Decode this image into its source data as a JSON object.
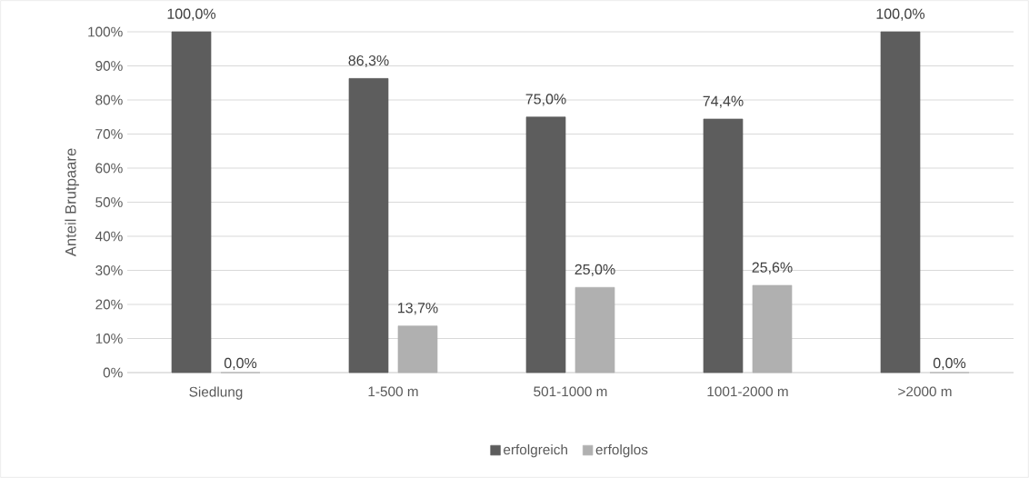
{
  "chart_data": {
    "type": "bar",
    "ylabel": "Anteil Brutpaare",
    "categories": [
      "Siedlung",
      "1-500 m",
      "501-1000 m",
      "1001-2000 m",
      ">2000 m"
    ],
    "series": [
      {
        "name": "erfolgreich",
        "color": "#5d5d5d",
        "values": [
          100.0,
          86.3,
          75.0,
          74.4,
          100.0
        ],
        "value_labels": [
          "100,0%",
          "86,3%",
          "75,0%",
          "74,4%",
          "100,0%"
        ]
      },
      {
        "name": "erfolglos",
        "color": "#b0b0b0",
        "values": [
          0.0,
          13.7,
          25.0,
          25.6,
          0.0
        ],
        "value_labels": [
          "0,0%",
          "13,7%",
          "25,0%",
          "25,6%",
          "0,0%"
        ]
      }
    ],
    "ylim": [
      0,
      100
    ],
    "yticks": [
      {
        "value": 0,
        "label": "0%"
      },
      {
        "value": 10,
        "label": "10%"
      },
      {
        "value": 20,
        "label": "20%"
      },
      {
        "value": 30,
        "label": "30%"
      },
      {
        "value": 40,
        "label": "40%"
      },
      {
        "value": 50,
        "label": "50%"
      },
      {
        "value": 60,
        "label": "60%"
      },
      {
        "value": 70,
        "label": "70%"
      },
      {
        "value": 80,
        "label": "80%"
      },
      {
        "value": 90,
        "label": "90%"
      },
      {
        "value": 100,
        "label": "100%"
      }
    ],
    "grid": "y",
    "legend": "bottom"
  }
}
